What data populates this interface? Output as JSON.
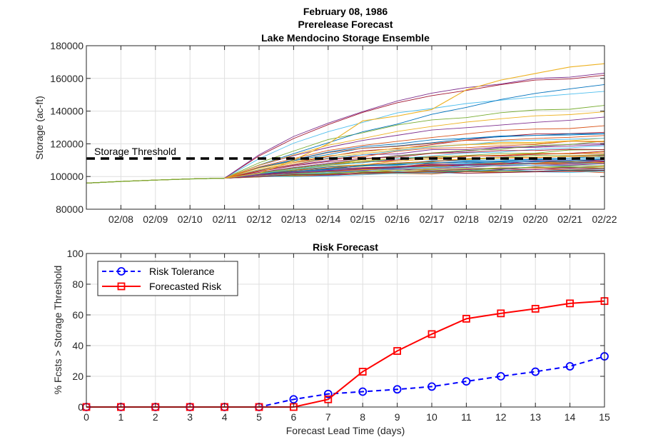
{
  "chart_data": [
    {
      "type": "line",
      "title_lines": [
        "February 08, 1986",
        "Prerelease Forecast",
        "Lake Mendocino Storage Ensemble"
      ],
      "ylabel": "Storage (ac-ft)",
      "xlabel": "",
      "ylim": [
        80000,
        180000
      ],
      "yticks": [
        80000,
        100000,
        120000,
        140000,
        160000,
        180000
      ],
      "x_range_days": [
        0,
        15
      ],
      "x_tick_labels": [
        "02/08",
        "02/09",
        "02/10",
        "02/11",
        "02/12",
        "02/13",
        "02/14",
        "02/15",
        "02/16",
        "02/17",
        "02/18",
        "02/19",
        "02/20",
        "02/21",
        "02/22"
      ],
      "grid": true,
      "threshold": {
        "label": "Storage Threshold",
        "value": 111000,
        "color": "#000000",
        "style": "dashed"
      },
      "ensemble": {
        "member_count": 60,
        "history_x": [
          0,
          1,
          2,
          3,
          4
        ],
        "history_values": [
          96000,
          97000,
          97800,
          98500,
          99000
        ],
        "forecast_x": [
          4,
          5,
          6,
          7,
          8,
          9,
          10,
          11,
          12,
          13,
          14,
          15
        ],
        "forecast_start": 99000,
        "member_end_range": [
          103000,
          169000
        ],
        "highlighted_member_values": [
          99000,
          102000,
          110000,
          120000,
          134000,
          137000,
          141000,
          153000,
          159000,
          163000,
          167000,
          169000
        ],
        "colors": [
          "#0072BD",
          "#D95319",
          "#EDB120",
          "#7E2F8E",
          "#77AC30",
          "#4DBEEE",
          "#A2142F"
        ]
      }
    },
    {
      "type": "line",
      "title": "Risk Forecast",
      "xlabel": "Forecast Lead Time (days)",
      "ylabel": "% Fcsts > Storage Threshold",
      "xlim": [
        0,
        15
      ],
      "ylim": [
        0,
        100
      ],
      "xticks": [
        0,
        1,
        2,
        3,
        4,
        5,
        6,
        7,
        8,
        9,
        10,
        11,
        12,
        13,
        14,
        15
      ],
      "yticks": [
        0,
        20,
        40,
        60,
        80,
        100
      ],
      "grid": true,
      "legend_position": "top-left",
      "series": [
        {
          "name": "Risk Tolerance",
          "color": "#0000ff",
          "style": "dashed",
          "marker": "circle",
          "x": [
            0,
            1,
            2,
            3,
            4,
            5,
            6,
            7,
            8,
            9,
            10,
            11,
            12,
            13,
            14,
            15
          ],
          "values": [
            0,
            0,
            0,
            0,
            0,
            0,
            5,
            8.5,
            10,
            11.5,
            13.3,
            16.7,
            20,
            23,
            26.5,
            33
          ]
        },
        {
          "name": "Forecasted Risk",
          "color": "#ff0000",
          "style": "solid",
          "marker": "square",
          "x": [
            0,
            1,
            2,
            3,
            4,
            5,
            6,
            7,
            8,
            9,
            10,
            11,
            12,
            13,
            14,
            15
          ],
          "values": [
            0,
            0,
            0,
            0,
            0,
            0,
            0,
            5,
            23,
            36.5,
            47.5,
            57.5,
            61,
            64,
            67.5,
            69
          ]
        }
      ]
    }
  ]
}
